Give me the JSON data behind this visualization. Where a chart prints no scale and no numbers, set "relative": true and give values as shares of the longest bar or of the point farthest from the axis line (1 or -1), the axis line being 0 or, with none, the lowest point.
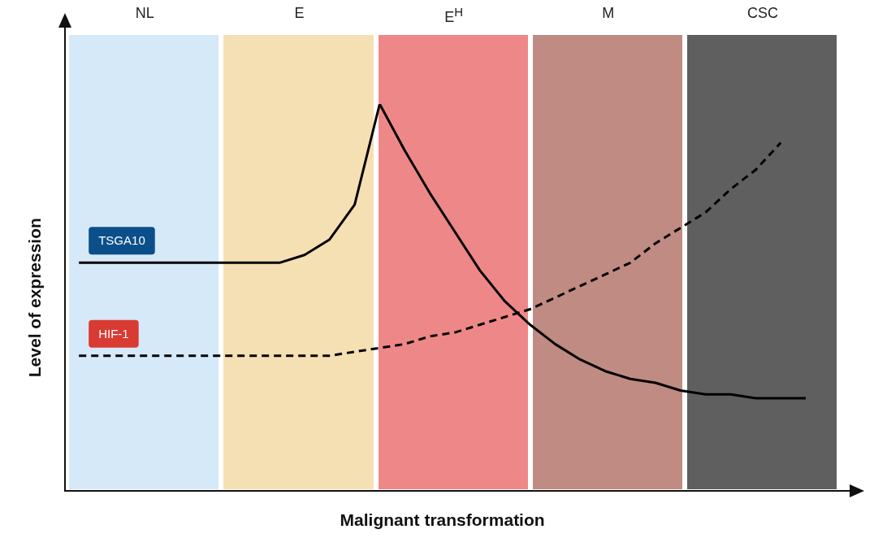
{
  "chart_data": {
    "type": "line",
    "relative": true,
    "xlabel": "Malignant transformation",
    "ylabel": "Level of expression",
    "grid": false,
    "legend": false,
    "marker": "none",
    "annotations": [
      "NL",
      "E",
      "E$^{H}$",
      "M",
      "CSC"
    ],
    "categories": [
      null,
      null,
      null,
      null,
      null,
      null,
      null,
      null,
      null,
      null,
      null,
      null,
      null,
      null,
      null,
      null,
      null,
      null,
      null,
      null,
      null,
      null,
      null,
      null,
      null,
      null,
      null,
      null,
      null,
      null
    ],
    "series": [
      {
        "name": "TSGA10",
        "color": "#000000",
        "line_style": "solid",
        "values": [
          0.59,
          0.59,
          0.59,
          0.59,
          0.59,
          0.59,
          0.59,
          0.59,
          0.59,
          0.61,
          0.65,
          0.74,
          1,
          0.88,
          0.77,
          0.67,
          0.57,
          0.49,
          0.43,
          0.38,
          0.34,
          0.31,
          0.29,
          0.28,
          0.26,
          0.25,
          0.25,
          0.24,
          0.24,
          0.24
        ]
      },
      {
        "name": "HIF-1",
        "color": "#000000",
        "line_style": "dashed",
        "values": [
          0.35,
          0.35,
          0.35,
          0.35,
          0.35,
          0.35,
          0.35,
          0.35,
          0.35,
          0.35,
          0.35,
          0.36,
          0.37,
          0.38,
          0.4,
          0.41,
          0.43,
          0.45,
          0.47,
          0.5,
          0.53,
          0.56,
          0.59,
          0.64,
          0.68,
          0.72,
          0.78,
          0.83,
          0.9,
          null
        ]
      }
    ]
  }
}
